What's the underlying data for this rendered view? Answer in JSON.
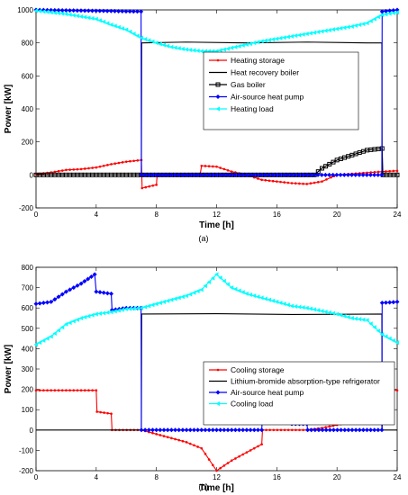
{
  "colors": {
    "heating_storage": "#ff0000",
    "heat_recovery_boiler": "#000000",
    "gas_boiler": "#000000",
    "ashp": "#0000ff",
    "heating_load": "#00ffff",
    "cooling_storage": "#ff0000",
    "libr": "#000000",
    "cooling_load": "#00ffff"
  },
  "chart_data": [
    {
      "type": "line",
      "panel_label": "(a)",
      "xlabel": "Time [h]",
      "ylabel": "Power [kW]",
      "xlim": [
        0,
        24
      ],
      "ylim": [
        -200,
        1000
      ],
      "xticks": [
        "0",
        "4",
        "8",
        "12",
        "16",
        "20",
        "24"
      ],
      "yticks": [
        "-200",
        "0",
        "200",
        "400",
        "600",
        "800",
        "1000"
      ],
      "legend_position": "center",
      "series": [
        {
          "name": "Heating storage",
          "key": "heating_storage",
          "marker": "dot",
          "points": [
            [
              0,
              5
            ],
            [
              1,
              15
            ],
            [
              2,
              30
            ],
            [
              3,
              35
            ],
            [
              4,
              45
            ],
            [
              5,
              65
            ],
            [
              6,
              80
            ],
            [
              7,
              90
            ],
            [
              7.05,
              -80
            ],
            [
              8,
              -60
            ],
            [
              8.05,
              0
            ],
            [
              10.9,
              0
            ],
            [
              11,
              55
            ],
            [
              12,
              50
            ],
            [
              13,
              20
            ],
            [
              14,
              0
            ],
            [
              15,
              -30
            ],
            [
              16,
              -40
            ],
            [
              17,
              -50
            ],
            [
              18,
              -55
            ],
            [
              19,
              -40
            ],
            [
              19.6,
              -15
            ],
            [
              20,
              0
            ],
            [
              23,
              20
            ],
            [
              24,
              25
            ]
          ]
        },
        {
          "name": "Heat recovery boiler",
          "key": "heat_recovery_boiler",
          "marker": "none",
          "points": [
            [
              0,
              0
            ],
            [
              7,
              0
            ],
            [
              7.02,
              800
            ],
            [
              10,
              805
            ],
            [
              14,
              800
            ],
            [
              18,
              805
            ],
            [
              22,
              800
            ],
            [
              22.98,
              800
            ],
            [
              23,
              0
            ],
            [
              24,
              0
            ]
          ]
        },
        {
          "name": "Gas boiler",
          "key": "gas_boiler",
          "marker": "square",
          "points": [
            [
              0,
              0
            ],
            [
              18.5,
              0
            ],
            [
              19,
              40
            ],
            [
              20,
              90
            ],
            [
              21,
              120
            ],
            [
              22,
              150
            ],
            [
              23,
              160
            ],
            [
              23.05,
              0
            ],
            [
              24,
              0
            ]
          ]
        },
        {
          "name": "Air-source heat pump",
          "key": "ashp",
          "marker": "diamond",
          "points": [
            [
              0,
              1000
            ],
            [
              6.98,
              990
            ],
            [
              7,
              0
            ],
            [
              22.98,
              0
            ],
            [
              23,
              990
            ],
            [
              24,
              1000
            ]
          ]
        },
        {
          "name": "Heating load",
          "key": "heating_load",
          "marker": "triangle",
          "points": [
            [
              0,
              995
            ],
            [
              1,
              985
            ],
            [
              2,
              975
            ],
            [
              3,
              960
            ],
            [
              4,
              945
            ],
            [
              5,
              910
            ],
            [
              6,
              880
            ],
            [
              7,
              830
            ],
            [
              8,
              800
            ],
            [
              9,
              775
            ],
            [
              10,
              760
            ],
            [
              11,
              750
            ],
            [
              12,
              750
            ],
            [
              13,
              770
            ],
            [
              14,
              790
            ],
            [
              15,
              810
            ],
            [
              16,
              825
            ],
            [
              17,
              840
            ],
            [
              18,
              855
            ],
            [
              19,
              870
            ],
            [
              20,
              885
            ],
            [
              21,
              900
            ],
            [
              22,
              920
            ],
            [
              23,
              970
            ],
            [
              24,
              985
            ]
          ]
        }
      ]
    },
    {
      "type": "line",
      "panel_label": "(b)",
      "xlabel": "Time [h]",
      "ylabel": "Power [kW]",
      "xlim": [
        0,
        24
      ],
      "ylim": [
        -200,
        800
      ],
      "xticks": [
        "0",
        "4",
        "8",
        "12",
        "16",
        "20",
        "24"
      ],
      "yticks": [
        "-200",
        "-100",
        "0",
        "100",
        "200",
        "300",
        "400",
        "500",
        "600",
        "700",
        "800"
      ],
      "legend_position": "center",
      "series": [
        {
          "name": "Cooling storage",
          "key": "cooling_storage",
          "marker": "dot",
          "points": [
            [
              0,
              195
            ],
            [
              4,
              195
            ],
            [
              4.05,
              90
            ],
            [
              5,
              80
            ],
            [
              5.05,
              0
            ],
            [
              7,
              0
            ],
            [
              8,
              -20
            ],
            [
              9,
              -40
            ],
            [
              10,
              -60
            ],
            [
              11,
              -90
            ],
            [
              12,
              -200
            ],
            [
              13,
              -150
            ],
            [
              14,
              -110
            ],
            [
              15,
              -70
            ],
            [
              15.05,
              0
            ],
            [
              18,
              0
            ],
            [
              19,
              10
            ],
            [
              20,
              25
            ],
            [
              21,
              40
            ],
            [
              22,
              80
            ],
            [
              22.5,
              110
            ],
            [
              23,
              120
            ],
            [
              23.05,
              195
            ],
            [
              24,
              195
            ]
          ]
        },
        {
          "name": "Lithium-bromide absorption-type refrigerator",
          "key": "libr",
          "marker": "none",
          "points": [
            [
              0,
              0
            ],
            [
              7,
              0
            ],
            [
              7.02,
              570
            ],
            [
              12,
              572
            ],
            [
              17,
              568
            ],
            [
              22.98,
              570
            ],
            [
              23,
              0
            ],
            [
              24,
              0
            ]
          ]
        },
        {
          "name": "Air-source heat pump",
          "key": "ashp",
          "marker": "diamond",
          "points": [
            [
              0,
              620
            ],
            [
              1,
              630
            ],
            [
              2,
              680
            ],
            [
              3,
              720
            ],
            [
              3.9,
              765
            ],
            [
              4,
              680
            ],
            [
              5,
              670
            ],
            [
              5.05,
              590
            ],
            [
              6,
              600
            ],
            [
              6.98,
              600
            ],
            [
              7,
              0
            ],
            [
              15,
              0
            ],
            [
              15.05,
              80
            ],
            [
              16.9,
              80
            ],
            [
              17,
              30
            ],
            [
              18,
              30
            ],
            [
              18.05,
              0
            ],
            [
              22.98,
              0
            ],
            [
              23,
              625
            ],
            [
              24,
              630
            ]
          ]
        },
        {
          "name": "Cooling load",
          "key": "cooling_load",
          "marker": "triangle",
          "points": [
            [
              0,
              420
            ],
            [
              1,
              460
            ],
            [
              2,
              520
            ],
            [
              3,
              550
            ],
            [
              4,
              570
            ],
            [
              5,
              580
            ],
            [
              6,
              595
            ],
            [
              7,
              600
            ],
            [
              8,
              620
            ],
            [
              9,
              640
            ],
            [
              10,
              660
            ],
            [
              11,
              690
            ],
            [
              12,
              765
            ],
            [
              13,
              700
            ],
            [
              14,
              670
            ],
            [
              15,
              650
            ],
            [
              16,
              630
            ],
            [
              17,
              610
            ],
            [
              18,
              600
            ],
            [
              19,
              585
            ],
            [
              20,
              570
            ],
            [
              21,
              550
            ],
            [
              22,
              540
            ],
            [
              23,
              470
            ],
            [
              24,
              430
            ]
          ]
        }
      ]
    }
  ]
}
